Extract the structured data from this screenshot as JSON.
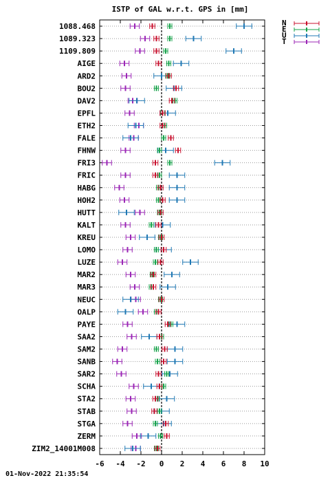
{
  "chart_data": {
    "type": "errorbar",
    "title": "ISTP of GAL w.r.t. GPS in [mm]",
    "footer": "01-Nov-2022 21:35:54",
    "xlim": [
      -6,
      10
    ],
    "x_ticks": [
      -6,
      -4,
      -2,
      0,
      2,
      4,
      6,
      8,
      10
    ],
    "grid": "horizontal dotted",
    "zero_line": "vertical dashed at 0",
    "legend_placement": "top-right, outside plot",
    "categories": [
      "1088.468",
      "1089.323",
      "1109.809",
      "AIGE",
      "ARD2",
      "BOU2",
      "DAV2",
      "EPFL",
      "ETH2",
      "FALE",
      "FHNW",
      "FRI3",
      "FRIC",
      "HABG",
      "HOH2",
      "HUTT",
      "KALT",
      "KREU",
      "LOMO",
      "LUZE",
      "MAR2",
      "MAR3",
      "NEUC",
      "OALP",
      "PAYE",
      "SAA2",
      "SAM2",
      "SANB",
      "SAR2",
      "SCHA",
      "STA2",
      "STAB",
      "STGA",
      "ZERM",
      "ZIM2_14001M008"
    ],
    "series": [
      {
        "name": "N",
        "color": "#c8102e",
        "err": 0.25,
        "values": [
          -0.9,
          -0.5,
          -0.5,
          -0.3,
          0.7,
          1.4,
          1.0,
          0.1,
          0.1,
          0.9,
          1.6,
          -0.6,
          -0.6,
          -0.1,
          0.1,
          -0.1,
          -0.3,
          0.0,
          0.2,
          -0.1,
          -0.8,
          -0.8,
          0.0,
          -0.3,
          0.6,
          -0.2,
          0.3,
          0.2,
          -0.3,
          -0.2,
          -0.6,
          -0.7,
          0.4,
          0.5,
          -0.4
        ]
      },
      {
        "name": "E",
        "color": "#16a34a",
        "err": 0.2,
        "values": [
          0.8,
          0.8,
          0.4,
          0.7,
          0.6,
          -0.5,
          1.3,
          0.1,
          0.3,
          0.2,
          -0.2,
          0.8,
          -0.2,
          -0.3,
          -0.3,
          -0.2,
          -1.0,
          -0.1,
          -0.5,
          -0.6,
          -0.9,
          -1.0,
          -0.1,
          -0.5,
          0.9,
          0.0,
          -0.5,
          -0.4,
          0.5,
          0.2,
          -0.4,
          -0.2,
          -0.6,
          -0.1,
          -0.5
        ]
      },
      {
        "name": "U",
        "color": "#1f78b4",
        "err": 0.75,
        "values": [
          8.0,
          3.1,
          7.0,
          1.9,
          0.0,
          1.2,
          -2.4,
          0.6,
          -2.5,
          -3.0,
          0.4,
          5.9,
          1.5,
          1.5,
          1.5,
          -3.4,
          0.1,
          -1.4,
          0.2,
          2.8,
          1.0,
          0.6,
          -3.0,
          -3.5,
          1.5,
          -1.2,
          1.3,
          1.3,
          0.8,
          -1.0,
          0.5,
          0.0,
          0.2,
          -1.3,
          -2.8
        ]
      },
      {
        "name": "T",
        "color": "#9b26b6",
        "err": 0.45,
        "values": [
          -2.6,
          -1.6,
          -2.1,
          -3.6,
          -3.4,
          -3.5,
          -2.8,
          -3.1,
          -2.2,
          -2.7,
          -3.5,
          -5.3,
          -3.5,
          -4.1,
          -3.6,
          -2.1,
          -3.5,
          -3.0,
          -3.3,
          -3.8,
          -3.0,
          -2.6,
          -2.5,
          -1.8,
          -3.3,
          -2.9,
          -3.8,
          -4.3,
          -3.9,
          -2.7,
          -3.0,
          -2.9,
          -3.3,
          -2.4,
          -2.5
        ]
      }
    ]
  }
}
